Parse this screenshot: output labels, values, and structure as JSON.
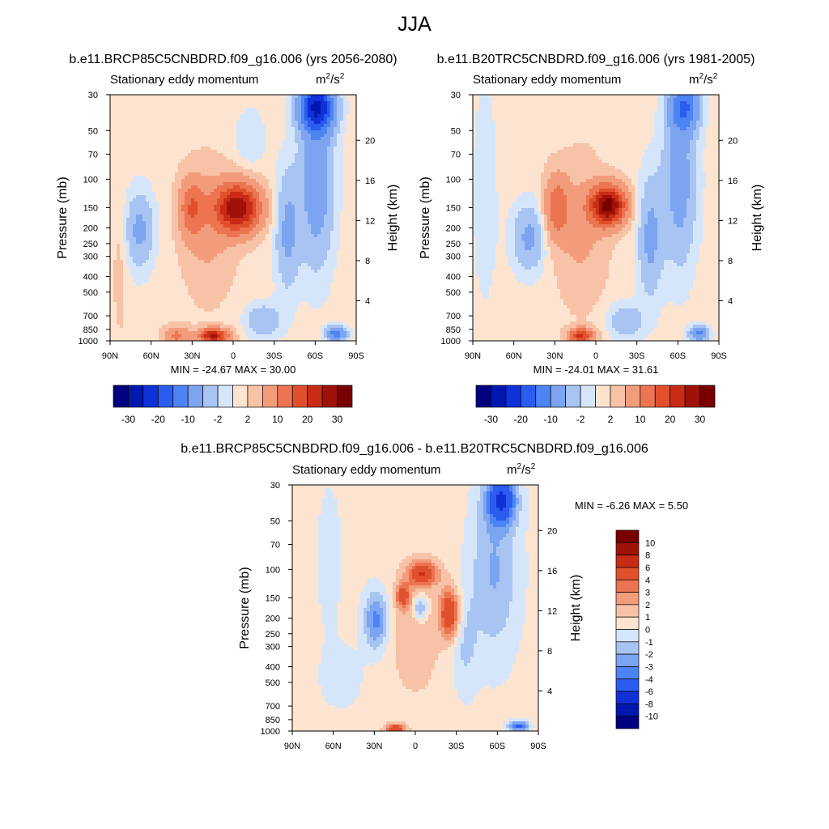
{
  "page_title": "JJA",
  "colors": {
    "div15": [
      "#000080",
      "#0018b0",
      "#1030d8",
      "#2a5cf0",
      "#4d84f4",
      "#7ca4f0",
      "#a8c4f2",
      "#d6e6fa",
      "#fde4d0",
      "#f8c2a6",
      "#f29c7c",
      "#ec7450",
      "#e0502c",
      "#c82c16",
      "#a01208",
      "#780000"
    ],
    "div16": [
      "#000080",
      "#0018b0",
      "#1030d8",
      "#2a5cf0",
      "#4d84f4",
      "#7ca4f0",
      "#a8c4f2",
      "#d6e6fa",
      "#fde4d0",
      "#f8c2a6",
      "#f29c7c",
      "#ec7450",
      "#e0502c",
      "#c82c16",
      "#a01208",
      "#780000"
    ]
  },
  "chart_data": [
    {
      "id": "p1",
      "type": "heatmap",
      "title": "b.e11.BRCP85C5CNBDRD.f09_g16.006 (yrs 2056-2080)",
      "left_string": "Stationary eddy momentum",
      "units_base": "m",
      "units_sup1": "2",
      "units_mid": "/s",
      "units_sup2": "2",
      "ylabel": "Pressure (mb)",
      "ylabel_right": "Height (km)",
      "x_ticks": [
        "90N",
        "60N",
        "30N",
        "0",
        "30S",
        "60S",
        "90S"
      ],
      "x_values": [
        90,
        60,
        30,
        0,
        -30,
        -60,
        -90
      ],
      "xlim": [
        90,
        -90
      ],
      "y_ticks": [
        "30",
        "50",
        "70",
        "100",
        "150",
        "200",
        "250",
        "300",
        "400",
        "500",
        "700",
        "850",
        "1000"
      ],
      "y_values": [
        30,
        50,
        70,
        100,
        150,
        200,
        250,
        300,
        400,
        500,
        700,
        850,
        1000
      ],
      "ylim": [
        1000,
        30
      ],
      "height_ticks": [
        "4",
        "8",
        "12",
        "16",
        "20"
      ],
      "height_values": [
        4,
        8,
        12,
        16,
        20
      ],
      "min_max": "MIN = -24.67  MAX = 30.00",
      "colorbar_levels": [
        -30,
        -25,
        -20,
        -15,
        -10,
        -5,
        -2,
        0,
        2,
        5,
        10,
        15,
        20,
        25,
        30
      ],
      "colorbar_labels": [
        "-30",
        "-20",
        "-10",
        "-2",
        "2",
        "10",
        "20",
        "30"
      ],
      "range": [
        -24.67,
        30.0
      ]
    },
    {
      "id": "p2",
      "type": "heatmap",
      "title": "b.e11.B20TRC5CNBDRD.f09_g16.006 (yrs 1981-2005)",
      "left_string": "Stationary eddy momentum",
      "units_base": "m",
      "units_sup1": "2",
      "units_mid": "/s",
      "units_sup2": "2",
      "ylabel": "Pressure (mb)",
      "ylabel_right": "Height (km)",
      "x_ticks": [
        "90N",
        "60N",
        "30N",
        "0",
        "30S",
        "60S",
        "90S"
      ],
      "x_values": [
        90,
        60,
        30,
        0,
        -30,
        -60,
        -90
      ],
      "xlim": [
        90,
        -90
      ],
      "y_ticks": [
        "30",
        "50",
        "70",
        "100",
        "150",
        "200",
        "250",
        "300",
        "400",
        "500",
        "700",
        "850",
        "1000"
      ],
      "y_values": [
        30,
        50,
        70,
        100,
        150,
        200,
        250,
        300,
        400,
        500,
        700,
        850,
        1000
      ],
      "ylim": [
        1000,
        30
      ],
      "height_ticks": [
        "4",
        "8",
        "12",
        "16",
        "20"
      ],
      "height_values": [
        4,
        8,
        12,
        16,
        20
      ],
      "min_max": "MIN = -24.01  MAX = 31.61",
      "colorbar_levels": [
        -30,
        -25,
        -20,
        -15,
        -10,
        -5,
        -2,
        0,
        2,
        5,
        10,
        15,
        20,
        25,
        30
      ],
      "colorbar_labels": [
        "-30",
        "-20",
        "-10",
        "-2",
        "2",
        "10",
        "20",
        "30"
      ],
      "range": [
        -24.01,
        31.61
      ]
    },
    {
      "id": "p3",
      "type": "heatmap",
      "title": "b.e11.BRCP85C5CNBDRD.f09_g16.006 - b.e11.B20TRC5CNBDRD.f09_g16.006",
      "left_string": "Stationary eddy momentum",
      "units_base": "m",
      "units_sup1": "2",
      "units_mid": "/s",
      "units_sup2": "2",
      "ylabel": "Pressure (mb)",
      "ylabel_right": "Height (km)",
      "x_ticks": [
        "90N",
        "60N",
        "30N",
        "0",
        "30S",
        "60S",
        "90S"
      ],
      "x_values": [
        90,
        60,
        30,
        0,
        -30,
        -60,
        -90
      ],
      "xlim": [
        90,
        -90
      ],
      "y_ticks": [
        "30",
        "50",
        "70",
        "100",
        "150",
        "200",
        "250",
        "300",
        "400",
        "500",
        "700",
        "850",
        "1000"
      ],
      "y_values": [
        30,
        50,
        70,
        100,
        150,
        200,
        250,
        300,
        400,
        500,
        700,
        850,
        1000
      ],
      "ylim": [
        1000,
        30
      ],
      "height_ticks": [
        "4",
        "8",
        "12",
        "16",
        "20"
      ],
      "height_values": [
        4,
        8,
        12,
        16,
        20
      ],
      "min_max": "MIN =  -6.26  MAX =   5.50",
      "colorbar_levels": [
        -10,
        -8,
        -6,
        -4,
        -3,
        -2,
        -1,
        0,
        1,
        2,
        3,
        4,
        6,
        8,
        10
      ],
      "colorbar_labels": [
        "10",
        "8",
        "6",
        "4",
        "3",
        "2",
        "1",
        "0",
        "-1",
        "-2",
        "-3",
        "-4",
        "-6",
        "-8",
        "-10"
      ],
      "range": [
        -6.26,
        5.5
      ]
    }
  ]
}
